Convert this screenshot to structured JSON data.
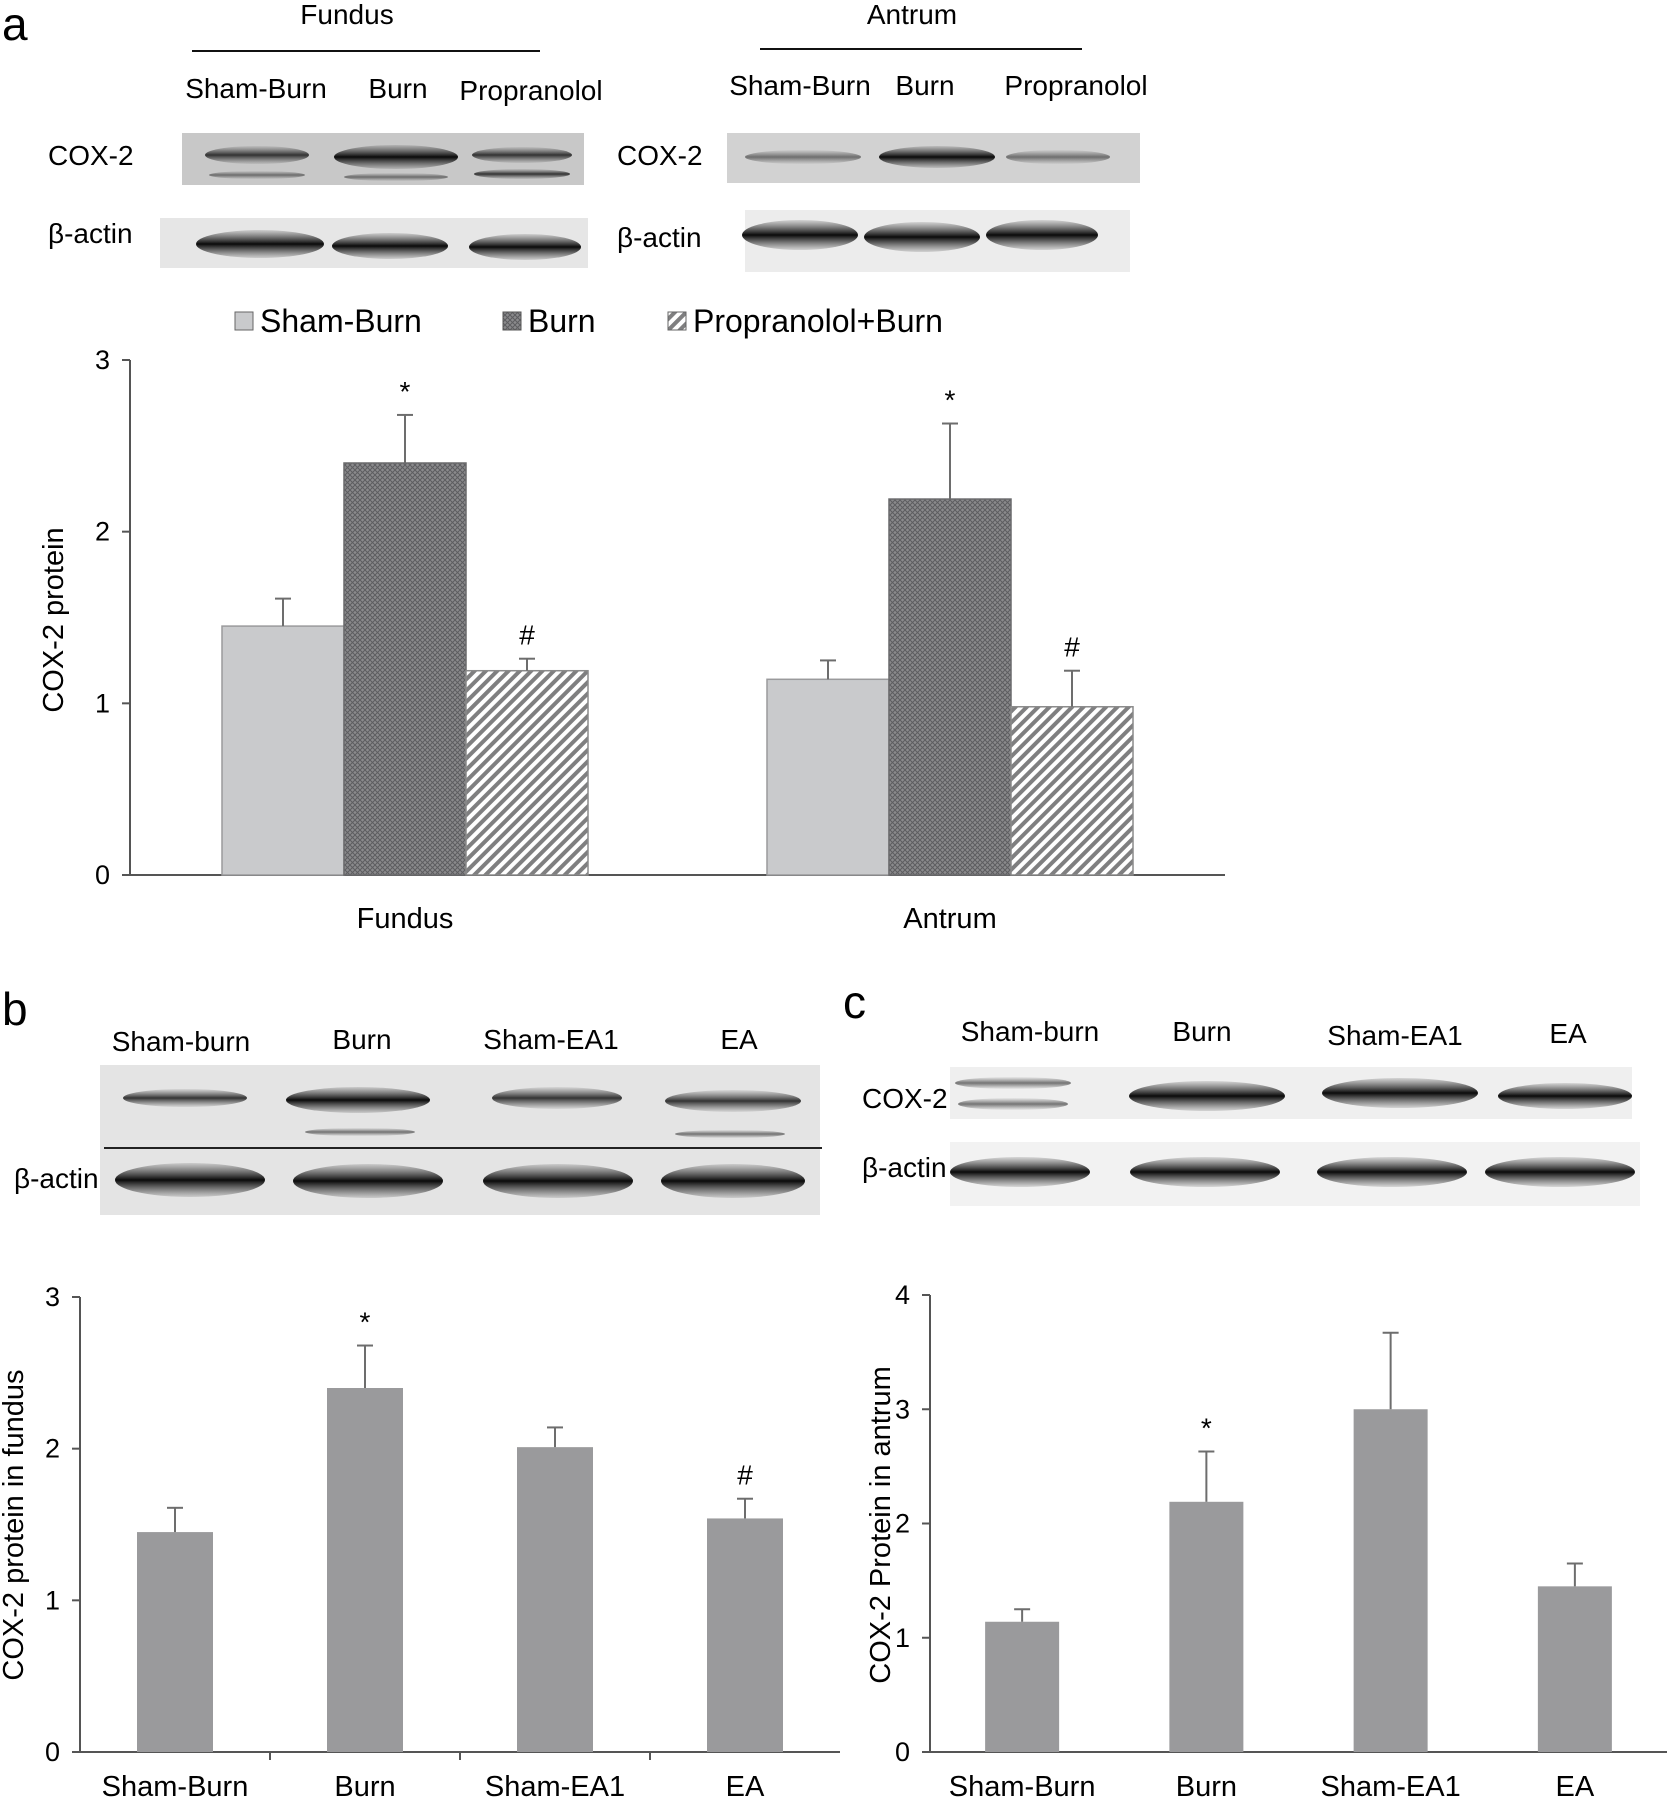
{
  "panels": {
    "a": {
      "letter": "a",
      "blot": {
        "tissue_left": "Fundus",
        "tissue_right": "Antrum",
        "lanes_left": [
          "Sham-Burn",
          "Burn",
          "Propranolol"
        ],
        "lanes_right": [
          "Sham-Burn",
          "Burn",
          "Propranolol"
        ],
        "row_labels": [
          "COX-2",
          "β-actin"
        ]
      }
    },
    "b": {
      "letter": "b",
      "blot": {
        "lanes": [
          "Sham-burn",
          "Burn",
          "Sham-EA1",
          "EA"
        ],
        "row_labels": [
          "β-actin"
        ]
      }
    },
    "c": {
      "letter": "c",
      "blot": {
        "lanes": [
          "Sham-burn",
          "Burn",
          "Sham-EA1",
          "EA"
        ],
        "row_labels": [
          "COX-2",
          "β-actin"
        ]
      }
    }
  },
  "chart_data": [
    {
      "panel": "a",
      "type": "bar",
      "categories": [
        "Fundus",
        "Antrum"
      ],
      "series": [
        {
          "name": "Sham-Burn",
          "values": [
            1.45,
            1.14
          ],
          "errors": [
            0.16,
            0.11
          ],
          "marks": [
            "",
            ""
          ],
          "pattern": "solid-light",
          "color": "#c9cacc"
        },
        {
          "name": "Burn",
          "values": [
            2.4,
            2.19
          ],
          "errors": [
            0.28,
            0.44
          ],
          "marks": [
            "*",
            "*"
          ],
          "pattern": "crosshatch",
          "color": "#8c8c8f"
        },
        {
          "name": "Propranolol+Burn",
          "values": [
            1.19,
            0.98
          ],
          "errors": [
            0.07,
            0.21
          ],
          "marks": [
            "#",
            "#"
          ],
          "pattern": "diagonal",
          "color": "#9a9a9a"
        }
      ],
      "title": "",
      "xlabel": "",
      "ylabel": "COX-2 protein",
      "ylim": [
        0,
        3
      ],
      "yticks": [
        "0",
        "1",
        "2",
        "3"
      ],
      "legend": "top",
      "grid": false
    },
    {
      "panel": "b",
      "type": "bar",
      "categories": [
        "Sham-Burn",
        "Burn",
        "Sham-EA1",
        "EA"
      ],
      "values": [
        1.45,
        2.4,
        2.01,
        1.54
      ],
      "errors": [
        0.16,
        0.28,
        0.13,
        0.13
      ],
      "marks": [
        "",
        "*",
        "",
        "#"
      ],
      "color": "#9a9a9c",
      "title": "",
      "xlabel": "",
      "ylabel": "COX-2 protein in fundus",
      "ylim": [
        0,
        3
      ],
      "yticks": [
        "0",
        "1",
        "2",
        "3"
      ],
      "grid": false
    },
    {
      "panel": "c",
      "type": "bar",
      "categories": [
        "Sham-Burn",
        "Burn",
        "Sham-EA1",
        "EA"
      ],
      "values": [
        1.14,
        2.19,
        3.0,
        1.45
      ],
      "errors": [
        0.11,
        0.44,
        0.67,
        0.2
      ],
      "marks": [
        "",
        "*",
        "",
        ""
      ],
      "color": "#9a9a9c",
      "title": "",
      "xlabel": "",
      "ylabel": "COX-2 Protein in antrum",
      "ylim": [
        0,
        4
      ],
      "yticks": [
        "0",
        "1",
        "2",
        "3",
        "4"
      ],
      "grid": false
    }
  ]
}
